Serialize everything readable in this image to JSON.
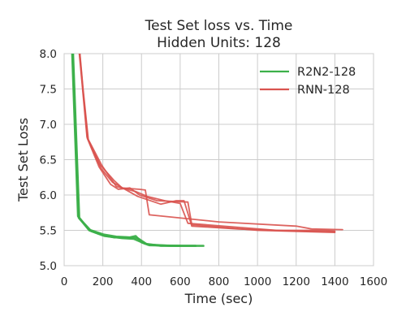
{
  "chart_data": {
    "type": "line",
    "title": "Test Set loss vs. Time",
    "subtitle": "Hidden Units: 128",
    "xlabel": "Time (sec)",
    "ylabel": "Test Set Loss",
    "xlim": [
      0,
      1600
    ],
    "ylim": [
      5.0,
      8.0
    ],
    "x_ticks": [
      0,
      200,
      400,
      600,
      800,
      1000,
      1200,
      1400,
      1600
    ],
    "y_ticks": [
      5.0,
      5.5,
      6.0,
      6.5,
      7.0,
      7.5,
      8.0
    ],
    "x_tick_labels": [
      "0",
      "200",
      "400",
      "600",
      "800",
      "1000",
      "1200",
      "1400",
      "1600"
    ],
    "y_tick_labels": [
      "5.0",
      "5.5",
      "6.0",
      "6.5",
      "7.0",
      "7.5",
      "8.0"
    ],
    "grid": true,
    "legend_position": "top-right",
    "series": [
      {
        "name": "R2N2-128",
        "color": "#3cb04a",
        "lines": [
          [
            [
              40,
              8.3
            ],
            [
              75,
              5.68
            ],
            [
              130,
              5.5
            ],
            [
              200,
              5.43
            ],
            [
              260,
              5.4
            ],
            [
              320,
              5.4
            ],
            [
              380,
              5.39
            ],
            [
              430,
              5.3
            ],
            [
              550,
              5.28
            ],
            [
              720,
              5.28
            ]
          ],
          [
            [
              38,
              8.3
            ],
            [
              72,
              5.7
            ],
            [
              128,
              5.51
            ],
            [
              205,
              5.44
            ],
            [
              270,
              5.41
            ],
            [
              340,
              5.4
            ],
            [
              370,
              5.42
            ],
            [
              400,
              5.33
            ],
            [
              440,
              5.29
            ],
            [
              600,
              5.28
            ]
          ],
          [
            [
              42,
              8.3
            ],
            [
              78,
              5.67
            ],
            [
              140,
              5.49
            ],
            [
              210,
              5.42
            ],
            [
              300,
              5.39
            ],
            [
              360,
              5.38
            ],
            [
              420,
              5.31
            ],
            [
              500,
              5.28
            ],
            [
              680,
              5.28
            ]
          ]
        ]
      },
      {
        "name": "RNN-128",
        "color": "#d9534f",
        "lines": [
          [
            [
              70,
              8.3
            ],
            [
              95,
              7.55
            ],
            [
              120,
              6.8
            ],
            [
              180,
              6.4
            ],
            [
              240,
              6.15
            ],
            [
              280,
              6.08
            ],
            [
              340,
              6.1
            ],
            [
              390,
              6.0
            ],
            [
              480,
              5.92
            ],
            [
              640,
              5.9
            ],
            [
              660,
              5.58
            ],
            [
              1000,
              5.5
            ],
            [
              1400,
              5.47
            ]
          ],
          [
            [
              72,
              8.3
            ],
            [
              98,
              7.5
            ],
            [
              125,
              6.78
            ],
            [
              185,
              6.43
            ],
            [
              260,
              6.2
            ],
            [
              300,
              6.1
            ],
            [
              390,
              6.08
            ],
            [
              420,
              6.07
            ],
            [
              440,
              5.72
            ],
            [
              800,
              5.62
            ],
            [
              1200,
              5.56
            ],
            [
              1280,
              5.52
            ],
            [
              1440,
              5.51
            ]
          ],
          [
            [
              68,
              8.3
            ],
            [
              92,
              7.6
            ],
            [
              118,
              6.82
            ],
            [
              190,
              6.38
            ],
            [
              250,
              6.18
            ],
            [
              380,
              5.98
            ],
            [
              500,
              5.87
            ],
            [
              580,
              5.92
            ],
            [
              620,
              5.92
            ],
            [
              660,
              5.56
            ],
            [
              900,
              5.52
            ],
            [
              1200,
              5.49
            ],
            [
              1400,
              5.48
            ]
          ],
          [
            [
              71,
              8.3
            ],
            [
              96,
              7.52
            ],
            [
              122,
              6.8
            ],
            [
              195,
              6.42
            ],
            [
              270,
              6.12
            ],
            [
              370,
              6.05
            ],
            [
              430,
              5.98
            ],
            [
              520,
              5.92
            ],
            [
              600,
              5.88
            ],
            [
              640,
              5.6
            ],
            [
              1100,
              5.5
            ],
            [
              1350,
              5.5
            ],
            [
              1400,
              5.49
            ]
          ]
        ]
      }
    ]
  }
}
